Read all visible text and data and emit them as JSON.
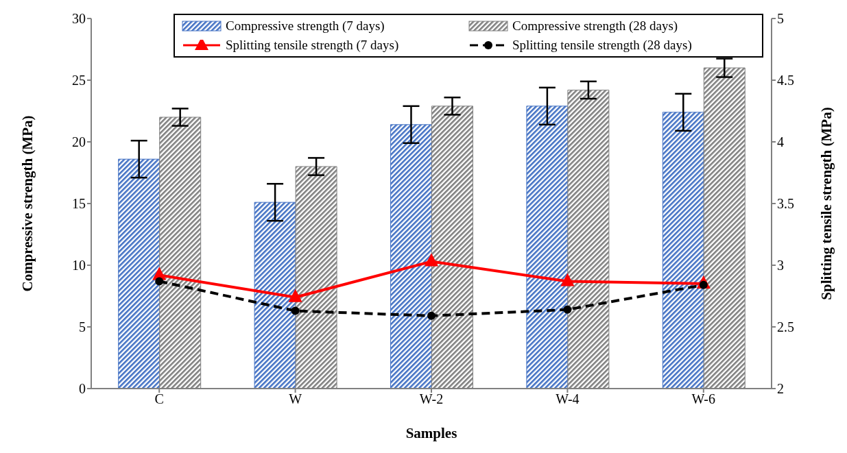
{
  "chart_data": {
    "type": "bar",
    "categories": [
      "C",
      "W",
      "W-2",
      "W-4",
      "W-6"
    ],
    "xlabel": "Samples",
    "ylabel": "Compressive strength (MPa)",
    "y2label": "Splitting tensile strength (MPa)",
    "ylim": [
      0,
      30
    ],
    "yticks": [
      0,
      5,
      10,
      15,
      20,
      25,
      30
    ],
    "y2lim": [
      2,
      5
    ],
    "y2ticks": [
      2,
      2.5,
      3,
      3.5,
      4,
      4.5,
      5
    ],
    "grid": false,
    "legend": "top",
    "series": [
      {
        "name": "Compressive strength (7 days)",
        "color": "#4472c4",
        "values": [
          18.6,
          15.1,
          21.4,
          22.9,
          22.4
        ],
        "errors": [
          1.5,
          1.5,
          1.5,
          1.5,
          1.5
        ]
      },
      {
        "name": "Compressive strength (28 days)",
        "color": "#808080",
        "values": [
          22.0,
          18.0,
          22.9,
          24.2,
          26.0
        ],
        "errors": [
          0.7,
          0.7,
          0.7,
          0.7,
          0.75
        ]
      },
      {
        "name": "Splitting tensile strength (7 days)",
        "type": "line",
        "axis": "y2",
        "color": "#ff0000",
        "marker": "triangle",
        "line_style": "solid",
        "values": [
          2.92,
          2.74,
          3.03,
          2.87,
          2.85
        ]
      },
      {
        "name": "Splitting tensile strength (28 days)",
        "type": "line",
        "axis": "y2",
        "color": "#000000",
        "marker": "circle",
        "line_style": "dashed",
        "values": [
          2.87,
          2.63,
          2.59,
          2.64,
          2.84
        ]
      }
    ]
  }
}
